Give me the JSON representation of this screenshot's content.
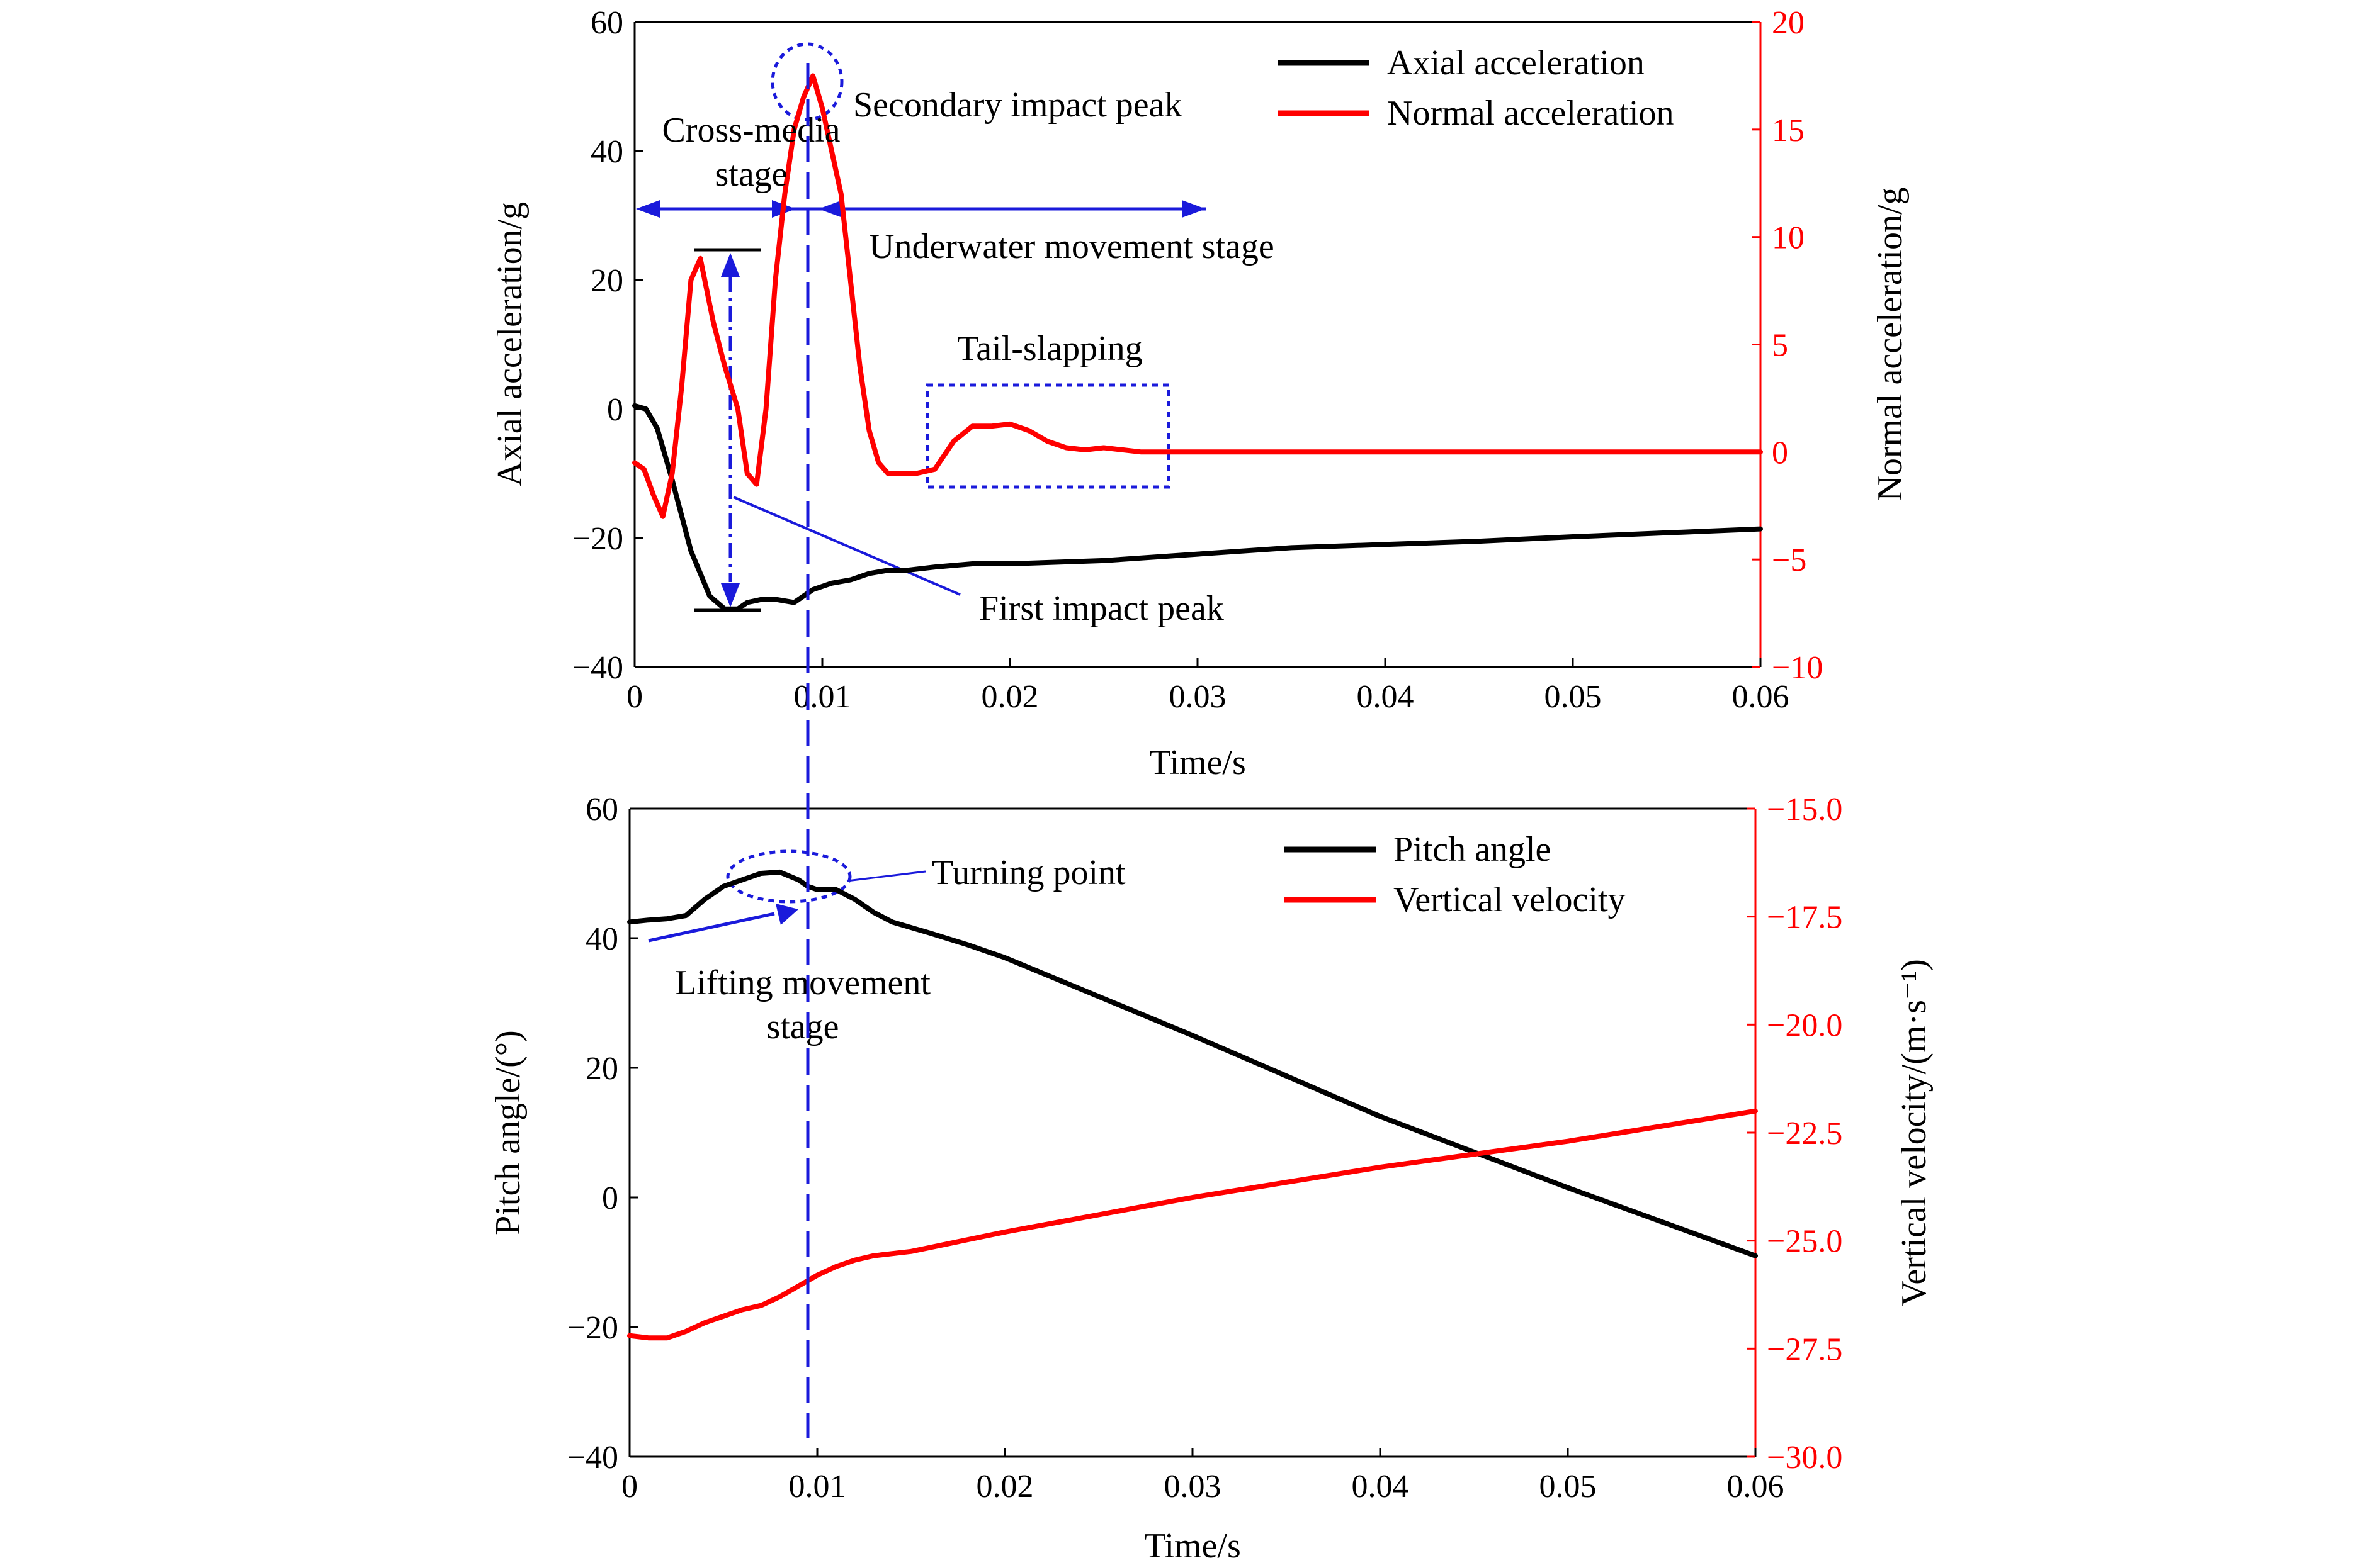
{
  "chart_data": [
    {
      "type": "line",
      "xlabel": "Time/s",
      "ylabel": "Axial acceleration/g",
      "y2label": "Normal acceleration/g",
      "xlim": [
        0,
        0.06
      ],
      "ylim": [
        -40,
        60
      ],
      "y2lim": [
        -10,
        20
      ],
      "xticks": [
        0,
        0.01,
        0.02,
        0.03,
        0.04,
        0.05,
        0.06
      ],
      "xtick_labels": [
        "0",
        "0.01",
        "0.02",
        "0.03",
        "0.04",
        "0.05",
        "0.06"
      ],
      "yticks": [
        -40,
        -20,
        0,
        20,
        40,
        60
      ],
      "ytick_labels": [
        "−40",
        "−20",
        "0",
        "20",
        "40",
        "60"
      ],
      "y2ticks": [
        -10,
        -5,
        0,
        5,
        10,
        15,
        20
      ],
      "y2tick_labels": [
        "−10",
        "−5",
        "0",
        "5",
        "10",
        "15",
        "20"
      ],
      "legend_position": "top-right",
      "series": [
        {
          "name": "Axial acceleration",
          "axis": "left",
          "color": "#000000",
          "x": [
            0,
            0.0006,
            0.0012,
            0.002,
            0.003,
            0.004,
            0.0048,
            0.0055,
            0.006,
            0.0068,
            0.0075,
            0.0085,
            0.009,
            0.0095,
            0.0105,
            0.0115,
            0.0125,
            0.0135,
            0.0145,
            0.016,
            0.018,
            0.02,
            0.025,
            0.03,
            0.035,
            0.04,
            0.045,
            0.05,
            0.055,
            0.06
          ],
          "y": [
            0.5,
            0,
            -3,
            -11,
            -22,
            -29,
            -31,
            -31,
            -30,
            -29.5,
            -29.5,
            -30,
            -29,
            -28,
            -27,
            -26.5,
            -25.5,
            -25,
            -25,
            -24.5,
            -24,
            -24,
            -23.5,
            -22.5,
            -21.5,
            -21,
            -20.5,
            -19.8,
            -19.2,
            -18.6
          ]
        },
        {
          "name": "Normal acceleration",
          "axis": "right",
          "color": "#ff0000",
          "x": [
            0,
            0.0005,
            0.001,
            0.0015,
            0.002,
            0.0025,
            0.003,
            0.0035,
            0.0042,
            0.0048,
            0.0055,
            0.006,
            0.0065,
            0.007,
            0.0075,
            0.008,
            0.0085,
            0.009,
            0.0095,
            0.01,
            0.0105,
            0.011,
            0.0115,
            0.012,
            0.0125,
            0.013,
            0.0135,
            0.014,
            0.015,
            0.016,
            0.017,
            0.018,
            0.019,
            0.02,
            0.021,
            0.022,
            0.023,
            0.024,
            0.025,
            0.026,
            0.027,
            0.028,
            0.03,
            0.033,
            0.036,
            0.04,
            0.045,
            0.05,
            0.055,
            0.06
          ],
          "y": [
            -0.5,
            -0.8,
            -2,
            -3,
            -1,
            3,
            8,
            9,
            6,
            4,
            2,
            -1,
            -1.5,
            2,
            8,
            12,
            15,
            16.5,
            17.5,
            16,
            14,
            12,
            8,
            4,
            1,
            -0.5,
            -1,
            -1,
            -1,
            -0.8,
            0.5,
            1.2,
            1.2,
            1.3,
            1,
            0.5,
            0.2,
            0.1,
            0.2,
            0.1,
            0,
            0,
            0,
            0,
            0,
            0,
            0,
            0,
            0,
            0
          ]
        }
      ],
      "annotations": [
        {
          "text": "Secondary impact peak"
        },
        {
          "lines": [
            "Cross-media",
            "stage"
          ]
        },
        {
          "text": "Underwater movement stage"
        },
        {
          "text": "Tail-slapping"
        },
        {
          "text": "First impact peak"
        }
      ]
    },
    {
      "type": "line",
      "xlabel": "Time/s",
      "ylabel": "Pitch angle/(°)",
      "y2label": "Vertical velocity/(m·s⁻¹)",
      "xlim": [
        0,
        0.06
      ],
      "ylim": [
        -40,
        60
      ],
      "y2lim": [
        -30,
        -15
      ],
      "xticks": [
        0,
        0.01,
        0.02,
        0.03,
        0.04,
        0.05,
        0.06
      ],
      "xtick_labels": [
        "0",
        "0.01",
        "0.02",
        "0.03",
        "0.04",
        "0.05",
        "0.06"
      ],
      "yticks": [
        -40,
        -20,
        0,
        20,
        40,
        60
      ],
      "ytick_labels": [
        "−40",
        "−20",
        "0",
        "20",
        "40",
        "60"
      ],
      "y2ticks": [
        -30,
        -27.5,
        -25,
        -22.5,
        -20,
        -17.5,
        -15
      ],
      "y2tick_labels": [
        "−30.0",
        "−27.5",
        "−25.0",
        "−22.5",
        "−20.0",
        "−17.5",
        "−15.0"
      ],
      "legend_position": "top-right",
      "series": [
        {
          "name": "Pitch angle",
          "axis": "left",
          "color": "#000000",
          "x": [
            0,
            0.001,
            0.002,
            0.003,
            0.004,
            0.005,
            0.006,
            0.007,
            0.008,
            0.009,
            0.0095,
            0.01,
            0.011,
            0.012,
            0.013,
            0.014,
            0.016,
            0.018,
            0.02,
            0.03,
            0.04,
            0.05,
            0.06
          ],
          "y": [
            42.5,
            42.8,
            43,
            43.5,
            46,
            48,
            49,
            50,
            50.2,
            49,
            48,
            47.5,
            47.5,
            46,
            44,
            42.5,
            40.8,
            39,
            37,
            25,
            12.5,
            1.5,
            -9
          ]
        },
        {
          "name": "Vertical velocity",
          "axis": "right",
          "color": "#ff0000",
          "x": [
            0,
            0.001,
            0.002,
            0.003,
            0.004,
            0.005,
            0.006,
            0.007,
            0.008,
            0.009,
            0.01,
            0.011,
            0.012,
            0.013,
            0.015,
            0.02,
            0.03,
            0.04,
            0.05,
            0.06
          ],
          "y": [
            -27.2,
            -27.25,
            -27.25,
            -27.1,
            -26.9,
            -26.75,
            -26.6,
            -26.5,
            -26.3,
            -26.05,
            -25.8,
            -25.6,
            -25.45,
            -25.35,
            -25.25,
            -24.8,
            -24.0,
            -23.3,
            -22.7,
            -22.0
          ]
        }
      ],
      "annotations": [
        {
          "text": "Turning point"
        },
        {
          "lines": [
            "Lifting movement",
            "stage"
          ]
        }
      ]
    }
  ]
}
